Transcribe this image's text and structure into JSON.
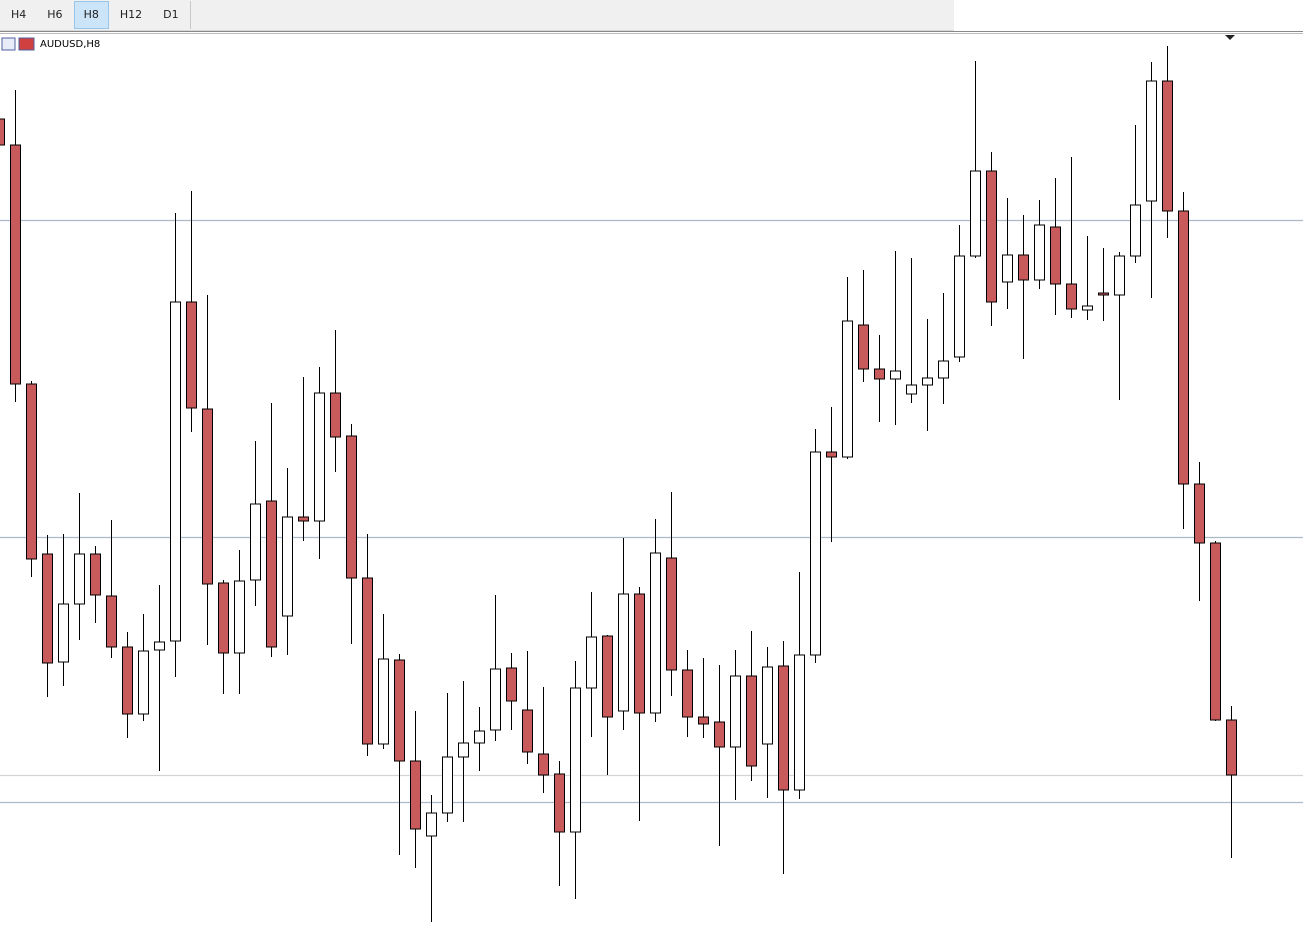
{
  "toolbar": {
    "buttons": [
      "H4",
      "H6",
      "H8",
      "H12",
      "D1"
    ],
    "selected": "H8"
  },
  "chart_data": {
    "type": "candlestick",
    "title": "AUDUSD,H8",
    "up_color": "#ffffff",
    "down_color": "#c85a5c",
    "wick_color": "#000000",
    "ylim": [
      0,
      893
    ],
    "open": [
      810,
      784,
      545,
      375,
      267,
      325,
      375,
      333,
      282,
      215,
      279,
      288,
      627,
      520,
      346,
      276,
      349,
      428,
      313,
      412,
      408,
      536,
      493,
      351,
      185,
      269,
      168,
      93,
      116,
      172,
      186,
      199,
      261,
      219,
      175,
      155,
      97,
      241,
      293,
      218,
      335,
      216,
      371,
      259,
      212,
      207,
      182,
      253,
      185,
      263,
      139,
      274,
      477,
      472,
      604,
      560,
      550,
      535,
      544,
      551,
      572,
      673,
      758,
      647,
      674,
      649,
      702,
      645,
      619,
      636,
      634,
      673,
      728,
      848,
      718,
      445,
      386,
      209
    ],
    "high": [
      810,
      839,
      548,
      394,
      395,
      436,
      383,
      409,
      297,
      315,
      344,
      716,
      738,
      634,
      349,
      379,
      488,
      526,
      461,
      552,
      562,
      599,
      505,
      395,
      315,
      275,
      218,
      134,
      236,
      248,
      222,
      334,
      276,
      278,
      242,
      168,
      268,
      337,
      294,
      391,
      342,
      410,
      437,
      279,
      271,
      264,
      279,
      298,
      282,
      288,
      357,
      500,
      522,
      652,
      659,
      594,
      678,
      671,
      610,
      636,
      704,
      868,
      777,
      731,
      714,
      729,
      751,
      772,
      693,
      681,
      677,
      804,
      867,
      883,
      737,
      467,
      388,
      223
    ],
    "low": [
      784,
      527,
      352,
      232,
      243,
      289,
      306,
      271,
      191,
      208,
      158,
      252,
      497,
      284,
      235,
      235,
      323,
      272,
      274,
      388,
      370,
      457,
      285,
      173,
      180,
      74,
      61,
      7,
      107,
      107,
      158,
      188,
      199,
      165,
      136,
      43,
      30,
      192,
      154,
      199,
      108,
      207,
      233,
      192,
      191,
      83,
      129,
      148,
      131,
      55,
      130,
      266,
      387,
      470,
      547,
      507,
      504,
      526,
      498,
      525,
      567,
      671,
      603,
      620,
      570,
      640,
      614,
      611,
      609,
      608,
      529,
      666,
      631,
      691,
      400,
      328,
      208,
      71
    ],
    "close": [
      784,
      545,
      370,
      266,
      325,
      375,
      334,
      282,
      215,
      278,
      287,
      627,
      521,
      345,
      276,
      348,
      425,
      282,
      412,
      408,
      536,
      492,
      351,
      185,
      270,
      168,
      100,
      116,
      172,
      186,
      198,
      260,
      228,
      177,
      154,
      97,
      241,
      292,
      212,
      335,
      216,
      376,
      259,
      212,
      205,
      182,
      253,
      163,
      262,
      139,
      274,
      477,
      472,
      608,
      560,
      550,
      558,
      544,
      551,
      568,
      673,
      758,
      627,
      674,
      649,
      704,
      645,
      620,
      623,
      634,
      673,
      724,
      848,
      718,
      445,
      386,
      209,
      154
    ],
    "levels": [
      {
        "value": 709,
        "color": "#a9b9c9"
      },
      {
        "value": 392,
        "color": "#a9b9c9"
      },
      {
        "value": 127,
        "color": "#a9b9c9"
      },
      {
        "value": 154,
        "color": "#d4d4d4"
      }
    ]
  }
}
